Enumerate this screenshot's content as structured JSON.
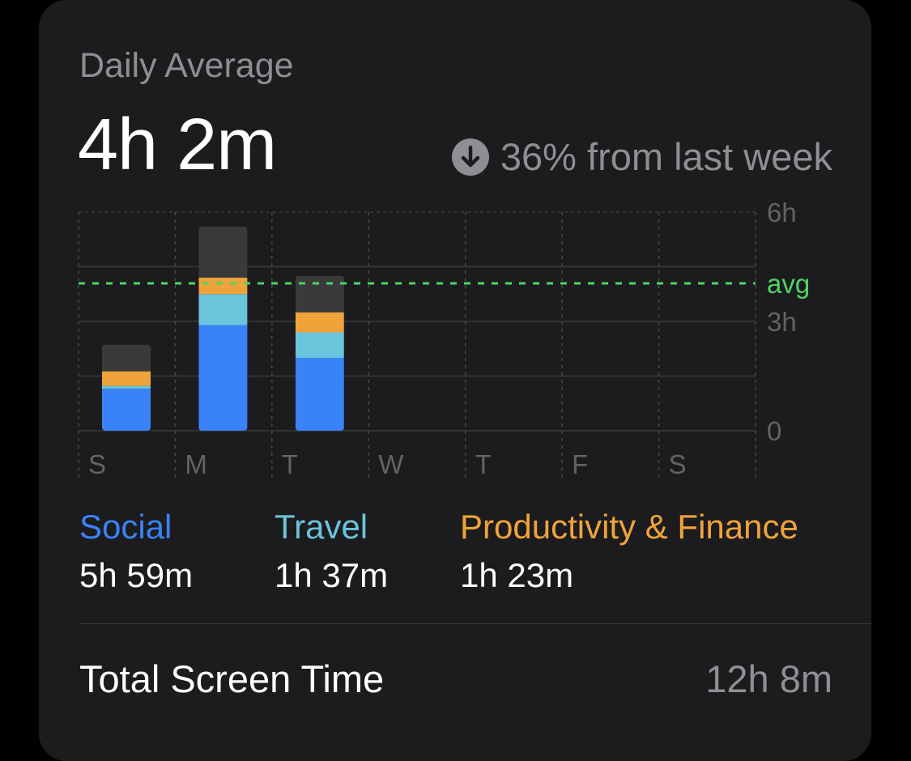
{
  "header": {
    "label": "Daily Average",
    "value": "4h 2m",
    "change_text": "36% from last week",
    "change_icon": "arrow-down-circle-icon"
  },
  "colors": {
    "social": "#3a82f7",
    "travel": "#6ac4dc",
    "productivity": "#f0a33a",
    "other": "#3a3a3c",
    "avg": "#4fd462"
  },
  "chart_data": {
    "type": "bar",
    "stacked": true,
    "categories": [
      "S",
      "M",
      "T",
      "W",
      "T",
      "F",
      "S"
    ],
    "y_ticks": [
      "6h",
      "3h",
      "0"
    ],
    "ylim": [
      0,
      6
    ],
    "avg_label": "avg",
    "avg_value": 4.03,
    "series": [
      {
        "name": "Social",
        "key": "social",
        "values": [
          1.15,
          2.9,
          2.0,
          0,
          0,
          0,
          0
        ]
      },
      {
        "name": "Travel",
        "key": "travel",
        "values": [
          0.08,
          0.85,
          0.7,
          0,
          0,
          0,
          0
        ]
      },
      {
        "name": "Productivity & Finance",
        "key": "productivity",
        "values": [
          0.4,
          0.45,
          0.55,
          0,
          0,
          0,
          0
        ]
      },
      {
        "name": "Other",
        "key": "other",
        "values": [
          0.73,
          1.4,
          1.0,
          0,
          0,
          0,
          0
        ]
      }
    ],
    "grid": true
  },
  "legend": [
    {
      "name": "Social",
      "value": "5h 59m"
    },
    {
      "name": "Travel",
      "value": "1h 37m"
    },
    {
      "name": "Productivity & Finance",
      "value": "1h 23m"
    }
  ],
  "total": {
    "label": "Total Screen Time",
    "value": "12h 8m"
  }
}
